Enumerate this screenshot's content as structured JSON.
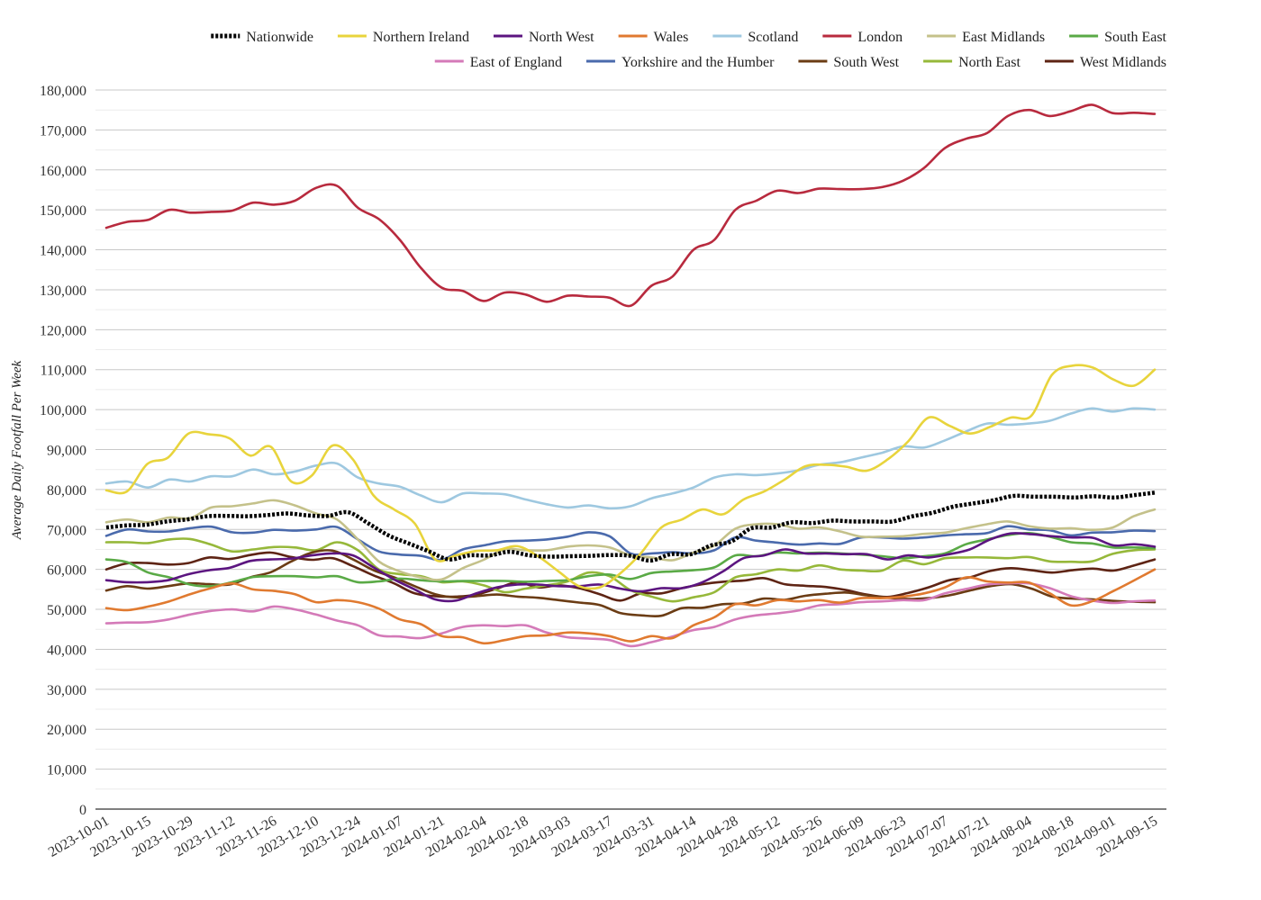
{
  "chart_data": {
    "type": "line",
    "title": "",
    "xlabel": "",
    "ylabel": "Average Daily Footfall Per Week",
    "ylim": [
      0,
      180000
    ],
    "y_ticks": [
      0,
      10000,
      20000,
      30000,
      40000,
      50000,
      60000,
      70000,
      80000,
      90000,
      100000,
      110000,
      120000,
      130000,
      140000,
      150000,
      160000,
      170000,
      180000
    ],
    "y_tick_labels": [
      "0",
      "10,000",
      "20,000",
      "30,000",
      "40,000",
      "50,000",
      "60,000",
      "70,000",
      "80,000",
      "90,000",
      "100,000",
      "110,000",
      "120,000",
      "130,000",
      "140,000",
      "150,000",
      "160,000",
      "170,000",
      "180,000"
    ],
    "x_tick_labels": [
      "2023-10-01",
      "2023-10-15",
      "2023-10-29",
      "2023-11-12",
      "2023-11-26",
      "2023-12-10",
      "2023-12-24",
      "2024-01-07",
      "2024-01-21",
      "2024-02-04",
      "2024-02-18",
      "2024-03-03",
      "2024-03-17",
      "2024-03-31",
      "2024-04-14",
      "2024-04-28",
      "2024-05-12",
      "2024-05-26",
      "2024-06-09",
      "2024-06-23",
      "2024-07-07",
      "2024-07-21",
      "2024-08-04",
      "2024-08-18",
      "2024-09-01",
      "2024-09-15"
    ],
    "x_start": "2023-10-01",
    "x_interval_days": 7,
    "grid": true,
    "legend_position": "top",
    "series": [
      {
        "name": "Nationwide",
        "color": "#000000",
        "dashed": true,
        "values": [
          70500,
          71000,
          71200,
          72000,
          72500,
          73300,
          73400,
          73300,
          73600,
          74000,
          73500,
          73400,
          74300,
          71500,
          68500,
          66500,
          64500,
          62500,
          63500,
          63500,
          64400,
          63500,
          63200,
          63300,
          63400,
          63600,
          63400,
          62200,
          63800,
          63800,
          66000,
          67000,
          70300,
          70500,
          71800,
          71600,
          72200,
          72000,
          72000,
          72000,
          73300,
          74200,
          75700,
          76500,
          77300,
          78400,
          78200,
          78200,
          78000,
          78300,
          78000,
          78600,
          79200
        ]
      },
      {
        "name": "Northern Ireland",
        "color": "#e8d43c",
        "dashed": false,
        "values": [
          79800,
          79500,
          86400,
          88000,
          94000,
          93800,
          92800,
          88500,
          90700,
          82000,
          83500,
          91000,
          87500,
          78500,
          75000,
          71500,
          62500,
          63500,
          64600,
          64800,
          65800,
          63300,
          59500,
          55800,
          55500,
          59000,
          64000,
          70500,
          72500,
          75000,
          73800,
          77500,
          79500,
          82500,
          85800,
          86200,
          85700,
          84700,
          87500,
          92000,
          98000,
          96000,
          94000,
          95700,
          98000,
          98500,
          108700,
          111000,
          110500,
          107500,
          106000,
          110000
        ]
      },
      {
        "name": "North West",
        "color": "#5c1580",
        "dashed": false,
        "values": [
          57300,
          56800,
          56800,
          57300,
          58800,
          59800,
          60400,
          62100,
          62500,
          62700,
          63500,
          64000,
          63500,
          60500,
          57500,
          55000,
          52500,
          52200,
          54000,
          55500,
          56200,
          56200,
          55800,
          55800,
          56200,
          55200,
          54500,
          55300,
          55300,
          56800,
          59500,
          62800,
          63500,
          65000,
          64000,
          64000,
          63800,
          63800,
          62500,
          63500,
          63000,
          63800,
          65000,
          67500,
          69000,
          68800,
          68300,
          68000,
          67900,
          66000,
          66300,
          65700
        ]
      },
      {
        "name": "Wales",
        "color": "#e07a30",
        "dashed": false,
        "values": [
          50300,
          49800,
          50700,
          52000,
          53800,
          55300,
          56500,
          55000,
          54600,
          53800,
          51800,
          52300,
          51800,
          50200,
          47500,
          46300,
          43300,
          43000,
          41500,
          42300,
          43300,
          43500,
          44200,
          44000,
          43300,
          42000,
          43300,
          42800,
          46000,
          48000,
          51300,
          51000,
          52300,
          52000,
          52300,
          51700,
          52800,
          52800,
          53200,
          54000,
          55500,
          58000,
          57000,
          56700,
          56700,
          54000,
          51000,
          52000,
          54500,
          57200,
          60000
        ]
      },
      {
        "name": "Scotland",
        "color": "#9ec8e0",
        "dashed": false,
        "values": [
          81500,
          82000,
          80500,
          82500,
          82000,
          83300,
          83300,
          85000,
          83800,
          84500,
          86000,
          86500,
          83000,
          81500,
          80700,
          78500,
          76800,
          79000,
          79000,
          78800,
          77500,
          76300,
          75500,
          76000,
          75300,
          75800,
          77800,
          79000,
          80500,
          83000,
          83800,
          83600,
          84000,
          84800,
          86200,
          86800,
          88000,
          89200,
          90800,
          90500,
          92300,
          94500,
          96500,
          96200,
          96500,
          97200,
          99000,
          100300,
          99500,
          100300,
          100000
        ]
      },
      {
        "name": "London",
        "color": "#b82a3e",
        "dashed": false,
        "values": [
          145500,
          147000,
          147500,
          150000,
          149300,
          149500,
          149800,
          151800,
          151300,
          152300,
          155500,
          156000,
          150500,
          147700,
          142500,
          135500,
          130500,
          129700,
          127200,
          129300,
          128800,
          127000,
          128500,
          128300,
          128000,
          126000,
          131000,
          133300,
          140000,
          142500,
          150000,
          152300,
          154800,
          154200,
          155300,
          155200,
          155200,
          155700,
          157300,
          160500,
          165500,
          167800,
          169200,
          173500,
          175000,
          173500,
          174700,
          176300,
          174200,
          174300,
          174000
        ]
      },
      {
        "name": "East Midlands",
        "color": "#c4c18a",
        "dashed": false,
        "values": [
          71800,
          72500,
          71800,
          73000,
          72800,
          75500,
          75800,
          76500,
          77300,
          76000,
          74000,
          72500,
          67500,
          62000,
          59500,
          58000,
          57500,
          60300,
          62400,
          65000,
          64800,
          64800,
          65700,
          66000,
          65500,
          63500,
          63000,
          62300,
          64200,
          66000,
          70200,
          71300,
          71300,
          70200,
          70500,
          69500,
          68200,
          68200,
          68300,
          68900,
          69200,
          70300,
          71300,
          72000,
          70800,
          70200,
          70300,
          69900,
          70500,
          73300,
          75000
        ]
      },
      {
        "name": "South East",
        "color": "#5aaa46",
        "dashed": false,
        "values": [
          62500,
          61800,
          59200,
          58000,
          56200,
          55800,
          56800,
          58100,
          58300,
          58300,
          58000,
          58300,
          56800,
          57000,
          57700,
          57300,
          57000,
          57100,
          57100,
          57100,
          56900,
          57100,
          57300,
          58300,
          58700,
          57600,
          59100,
          59500,
          59800,
          60500,
          63500,
          63300,
          64200,
          64000,
          64200,
          64000,
          63700,
          63300,
          62800,
          63300,
          64000,
          66300,
          67500,
          68600,
          69100,
          68200,
          66800,
          66500,
          65500,
          65500,
          65300
        ]
      },
      {
        "name": "East of England",
        "color": "#d47ab8",
        "dashed": false,
        "values": [
          46500,
          46700,
          46800,
          47500,
          48700,
          49600,
          50000,
          49500,
          50700,
          50000,
          48700,
          47200,
          46000,
          43500,
          43200,
          42800,
          44000,
          45600,
          46000,
          45800,
          46000,
          44200,
          43000,
          42700,
          42300,
          40800,
          41800,
          43200,
          44800,
          45600,
          47500,
          48500,
          49000,
          49700,
          51000,
          51300,
          51800,
          52000,
          52300,
          52300,
          54000,
          55100,
          56200,
          56500,
          56500,
          55300,
          53300,
          52200,
          51600,
          52000,
          52200
        ]
      },
      {
        "name": "Yorkshire and the Humber",
        "color": "#4a6aac",
        "dashed": false,
        "values": [
          68400,
          70000,
          69500,
          69500,
          70300,
          70700,
          69300,
          69200,
          69900,
          69700,
          70000,
          70600,
          67500,
          64500,
          63700,
          63400,
          62400,
          65000,
          66000,
          67000,
          67200,
          67500,
          68200,
          69300,
          68300,
          64000,
          64000,
          64300,
          64000,
          64800,
          68000,
          67200,
          66700,
          66200,
          66500,
          66400,
          68000,
          68000,
          67700,
          68000,
          68500,
          68800,
          69100,
          70800,
          70000,
          69800,
          68500,
          69200,
          69300,
          69700,
          69600
        ]
      },
      {
        "name": "South West",
        "color": "#6b3c14",
        "dashed": false,
        "values": [
          54700,
          55800,
          55200,
          55800,
          56500,
          56300,
          56200,
          58000,
          59300,
          62000,
          64200,
          64700,
          62500,
          59800,
          58000,
          55800,
          53800,
          53000,
          53300,
          53700,
          53200,
          52900,
          52300,
          51700,
          51100,
          49100,
          48500,
          48400,
          50300,
          50400,
          51300,
          51500,
          52700,
          52400,
          53400,
          53900,
          54200,
          53500,
          52900,
          52600,
          52800,
          53500,
          54700,
          55800,
          56300,
          55200,
          53200,
          52700,
          52500,
          52100,
          51900,
          51800
        ]
      },
      {
        "name": "North East",
        "color": "#96b83a",
        "dashed": false,
        "values": [
          66800,
          66800,
          66600,
          67500,
          67600,
          66200,
          64500,
          65000,
          65600,
          65500,
          64800,
          66800,
          64800,
          60000,
          58800,
          58300,
          56800,
          57000,
          56000,
          54300,
          55200,
          56000,
          57000,
          59200,
          58300,
          54800,
          53200,
          52000,
          53000,
          54300,
          58000,
          58800,
          60000,
          59700,
          61000,
          60000,
          59700,
          59700,
          62200,
          61300,
          62800,
          63000,
          63000,
          62800,
          63100,
          62000,
          61900,
          62000,
          63900,
          64800,
          65000
        ]
      },
      {
        "name": "West Midlands",
        "color": "#5e2414",
        "dashed": false,
        "values": [
          60000,
          61500,
          61600,
          61200,
          61600,
          63000,
          62600,
          63600,
          64200,
          63100,
          62400,
          62800,
          60800,
          58500,
          56500,
          54000,
          53300,
          53200,
          53700,
          55200,
          56800,
          55500,
          56000,
          55300,
          53800,
          52200,
          54000,
          54000,
          55300,
          56300,
          56900,
          57200,
          57800,
          56300,
          55900,
          55600,
          54800,
          53700,
          53100,
          54100,
          55500,
          57300,
          58000,
          59600,
          60300,
          59800,
          59200,
          59800,
          60200,
          59700,
          61000,
          62500
        ]
      }
    ]
  }
}
